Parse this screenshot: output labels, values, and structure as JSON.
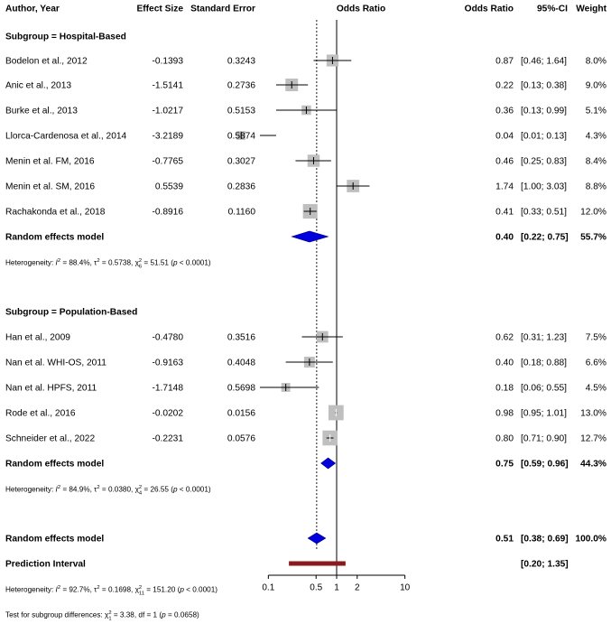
{
  "chart_data": {
    "type": "forest",
    "headers": {
      "study": "Author, Year",
      "te": "Effect Size",
      "se": "Standard Error",
      "plot": "Odds Ratio",
      "or": "Odds Ratio",
      "ci": "95%-CI",
      "weight": "Weight"
    },
    "x_axis": {
      "scale": "log",
      "range": [
        0.08,
        12.5
      ],
      "reference_line": 1,
      "dashed_line": 0.51,
      "ticks": [
        {
          "value": 0.1,
          "label": "0.1"
        },
        {
          "value": 0.5,
          "label": "0.5"
        },
        {
          "value": 1,
          "label": "1"
        },
        {
          "value": 2,
          "label": "2"
        },
        {
          "value": 10,
          "label": "10"
        }
      ]
    },
    "subgroups": [
      {
        "title": "Subgroup = Hospital-Based",
        "studies": [
          {
            "name": "Bodelon et al., 2012",
            "te": "-0.1393",
            "se": "0.3243",
            "or_text": "0.87",
            "ci_text": "[0.46; 1.64]",
            "weight_text": "8.0%",
            "or": 0.87,
            "lower": 0.46,
            "upper": 1.64,
            "weight": 8.0
          },
          {
            "name": "Anic et al., 2013",
            "te": "-1.5141",
            "se": "0.2736",
            "or_text": "0.22",
            "ci_text": "[0.13; 0.38]",
            "weight_text": "9.0%",
            "or": 0.22,
            "lower": 0.13,
            "upper": 0.38,
            "weight": 9.0
          },
          {
            "name": "Burke et al., 2013",
            "te": "-1.0217",
            "se": "0.5153",
            "or_text": "0.36",
            "ci_text": "[0.13; 0.99]",
            "weight_text": "5.1%",
            "or": 0.36,
            "lower": 0.13,
            "upper": 0.99,
            "weight": 5.1
          },
          {
            "name": "Llorca-Cardenosa et al., 2014",
            "te": "-3.2189",
            "se": "0.5874",
            "or_text": "0.04",
            "ci_text": "[0.01; 0.13]",
            "weight_text": "4.3%",
            "or": 0.04,
            "lower": 0.01,
            "upper": 0.13,
            "weight": 4.3
          },
          {
            "name": "Menin et al. FM, 2016",
            "te": "-0.7765",
            "se": "0.3027",
            "or_text": "0.46",
            "ci_text": "[0.25; 0.83]",
            "weight_text": "8.4%",
            "or": 0.46,
            "lower": 0.25,
            "upper": 0.83,
            "weight": 8.4
          },
          {
            "name": "Menin et al. SM, 2016",
            "te": "0.5539",
            "se": "0.2836",
            "or_text": "1.74",
            "ci_text": "[1.00; 3.03]",
            "weight_text": "8.8%",
            "or": 1.74,
            "lower": 1.0,
            "upper": 3.03,
            "weight": 8.8
          },
          {
            "name": "Rachakonda et al., 2018",
            "te": "-0.8916",
            "se": "0.1160",
            "or_text": "0.41",
            "ci_text": "[0.33; 0.51]",
            "weight_text": "12.0%",
            "or": 0.41,
            "lower": 0.33,
            "upper": 0.51,
            "weight": 12.0
          }
        ],
        "summary": {
          "label": "Random effects model",
          "or_text": "0.40",
          "ci_text": "[0.22; 0.75]",
          "weight_text": "55.7%",
          "or": 0.4,
          "lower": 0.22,
          "upper": 0.75
        },
        "heterogeneity": {
          "prefix": "Heterogeneity: ",
          "i2": "88.4%",
          "tau2": "0.5738",
          "chi2_df": "6",
          "chi2": "51.51",
          "p": "p < 0.0001"
        }
      },
      {
        "title": "Subgroup = Population-Based",
        "studies": [
          {
            "name": "Han et al., 2009",
            "te": "-0.4780",
            "se": "0.3516",
            "or_text": "0.62",
            "ci_text": "[0.31; 1.23]",
            "weight_text": "7.5%",
            "or": 0.62,
            "lower": 0.31,
            "upper": 1.23,
            "weight": 7.5
          },
          {
            "name": "Nan et al. WHI-OS, 2011",
            "te": "-0.9163",
            "se": "0.4048",
            "or_text": "0.40",
            "ci_text": "[0.18; 0.88]",
            "weight_text": "6.6%",
            "or": 0.4,
            "lower": 0.18,
            "upper": 0.88,
            "weight": 6.6
          },
          {
            "name": "Nan et al. HPFS, 2011",
            "te": "-1.7148",
            "se": "0.5698",
            "or_text": "0.18",
            "ci_text": "[0.06; 0.55]",
            "weight_text": "4.5%",
            "or": 0.18,
            "lower": 0.06,
            "upper": 0.55,
            "weight": 4.5
          },
          {
            "name": "Rode et al., 2016",
            "te": "-0.0202",
            "se": "0.0156",
            "or_text": "0.98",
            "ci_text": "[0.95; 1.01]",
            "weight_text": "13.0%",
            "or": 0.98,
            "lower": 0.95,
            "upper": 1.01,
            "weight": 13.0
          },
          {
            "name": "Schneider et al., 2022",
            "te": "-0.2231",
            "se": "0.0576",
            "or_text": "0.80",
            "ci_text": "[0.71; 0.90]",
            "weight_text": "12.7%",
            "or": 0.8,
            "lower": 0.71,
            "upper": 0.9,
            "weight": 12.7
          }
        ],
        "summary": {
          "label": "Random effects model",
          "or_text": "0.75",
          "ci_text": "[0.59; 0.96]",
          "weight_text": "44.3%",
          "or": 0.75,
          "lower": 0.59,
          "upper": 0.96
        },
        "heterogeneity": {
          "prefix": "Heterogeneity: ",
          "i2": "84.9%",
          "tau2": "0.0380",
          "chi2_df": "4",
          "chi2": "26.55",
          "p": "p < 0.0001"
        }
      }
    ],
    "overall": {
      "label": "Random effects model",
      "or_text": "0.51",
      "ci_text": "[0.38; 0.69]",
      "weight_text": "100.0%",
      "or": 0.51,
      "lower": 0.38,
      "upper": 0.69
    },
    "prediction": {
      "label": "Prediction Interval",
      "ci_text": "[0.20; 1.35]",
      "lower": 0.2,
      "upper": 1.35
    },
    "overall_heterogeneity": {
      "prefix": "Heterogeneity: ",
      "i2": "92.7%",
      "tau2": "0.1698",
      "chi2_df": "11",
      "chi2": "151.20",
      "p": "p < 0.0001"
    },
    "subgroup_test": {
      "prefix": "Test for subgroup differences: ",
      "chi2_df": "1",
      "chi2": "3.38",
      "df_text": "df = 1",
      "p": "p = 0.0658"
    },
    "colors": {
      "diamond": "#0000dd",
      "square": "#bfbfbf",
      "prediction": "#8b1a1a",
      "line": "#000000"
    }
  }
}
